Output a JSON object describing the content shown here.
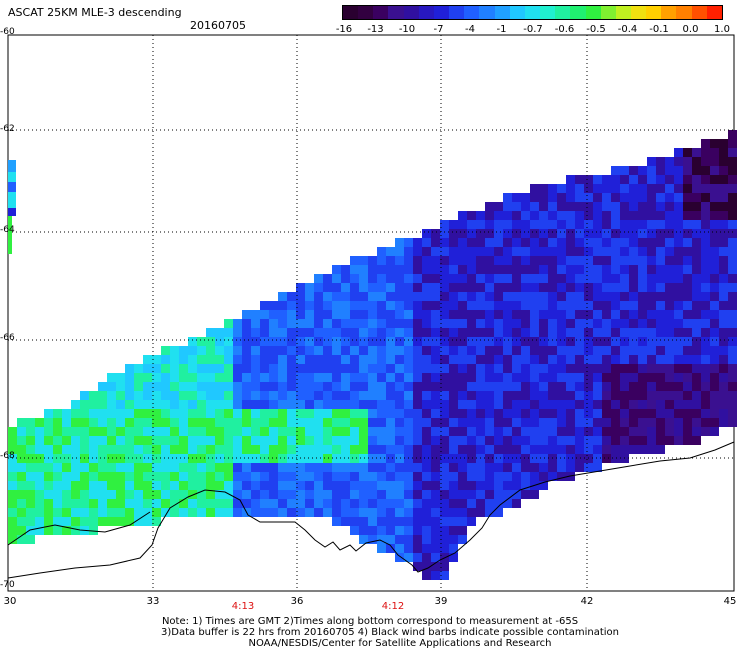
{
  "header": {
    "title": "ASCAT 25KM MLE-3 descending",
    "date": "20160705"
  },
  "colorbar": {
    "labels": [
      "-16",
      "-13",
      "-10",
      "-7",
      "-4",
      "-1",
      "-0.7",
      "-0.6",
      "-0.5",
      "-0.4",
      "-0.1",
      "0.0",
      "1.0"
    ],
    "colors": [
      "#2a0030",
      "#3a0060",
      "#3010a0",
      "#2020d8",
      "#2060ff",
      "#20a0ff",
      "#20e0f0",
      "#20f0a0",
      "#30f040",
      "#c0f020",
      "#ffd000",
      "#ff8000",
      "#ff2000"
    ]
  },
  "axes": {
    "lon_labels": [
      "30",
      "33",
      "36",
      "39",
      "42",
      "45"
    ],
    "lat_labels": [
      "-60",
      "-62",
      "-64",
      "-66",
      "-68",
      "-70"
    ],
    "time_labels": [
      "4:13",
      "4:12"
    ]
  },
  "notes": {
    "line1": "Note: 1) Times are GMT 2)Times along bottom correspond to measurement at -65S",
    "line2": "3)Data buffer is 22 hrs from 20160705 4) Black wind barbs indicate possible contamination",
    "line3": "NOAA/NESDIS/Center for Satellite Applications and Research"
  }
}
